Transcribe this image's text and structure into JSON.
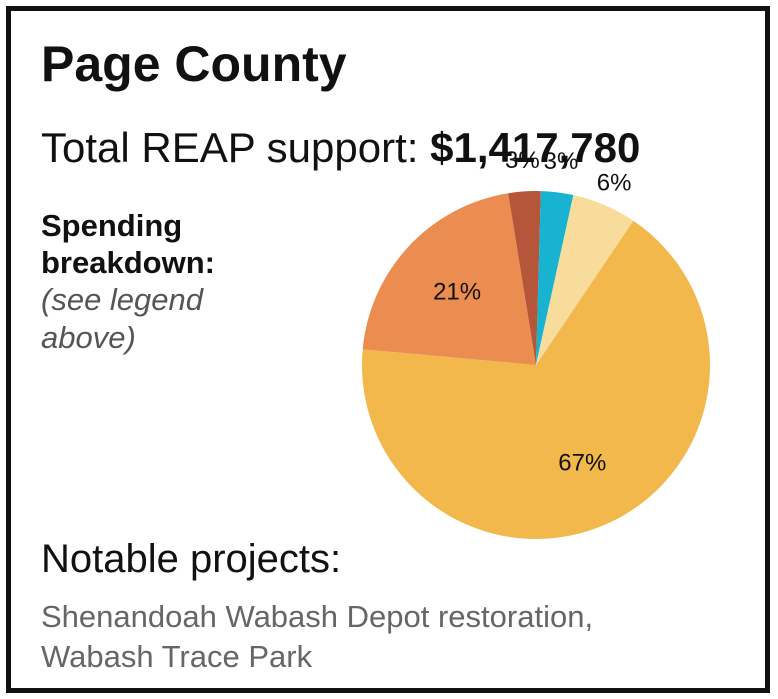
{
  "header": {
    "county": "Page County",
    "total_label": "Total REAP support: ",
    "total_amount": "$1,417,780"
  },
  "breakdown": {
    "label_line1": "Spending",
    "label_line2": "breakdown:",
    "note_line1": "(see legend",
    "note_line2": "above)"
  },
  "notable": {
    "title": "Notable projects:",
    "line1": "Shenandoah Wabash Depot restoration,",
    "line2": "Wabash Trace Park"
  },
  "chart_data": {
    "type": "pie",
    "slices": [
      {
        "label": "67%",
        "value": 67,
        "color": "#F2B84B"
      },
      {
        "label": "21%",
        "value": 21,
        "color": "#EB8C50"
      },
      {
        "label": "3%",
        "value": 3,
        "color": "#B5553A"
      },
      {
        "label": "3%",
        "value": 3,
        "color": "#17B3D0"
      },
      {
        "label": "6%",
        "value": 6,
        "color": "#F7DC9B"
      }
    ]
  }
}
